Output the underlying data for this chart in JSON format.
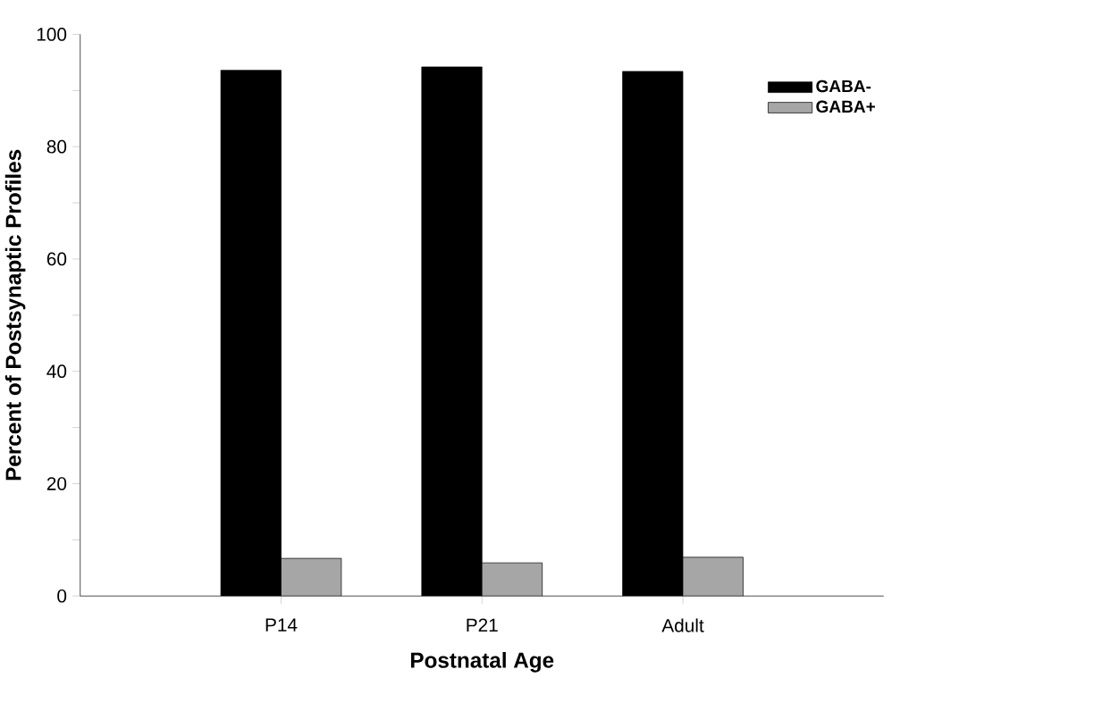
{
  "chart_data": {
    "type": "bar",
    "xlabel": "Postnatal Age",
    "ylabel": "Percent of Postsynaptic Profiles",
    "categories": [
      "P14",
      "P21",
      "Adult"
    ],
    "series": [
      {
        "name": "GABA-",
        "color": "#000000",
        "values": [
          93.6,
          94.2,
          93.4
        ]
      },
      {
        "name": "GABA+",
        "color": "#a6a6a6",
        "values": [
          6.7,
          5.9,
          6.9
        ]
      }
    ],
    "ylim": [
      0,
      100
    ],
    "yticks": [
      0,
      {
        "value": 10,
        "label": null
      },
      20,
      {
        "value": 30,
        "label": null
      },
      40,
      {
        "value": 50,
        "label": null
      },
      60,
      {
        "value": 70,
        "label": null
      },
      80,
      {
        "value": 90,
        "label": null
      },
      100
    ],
    "legend": "top right",
    "grid": false
  }
}
